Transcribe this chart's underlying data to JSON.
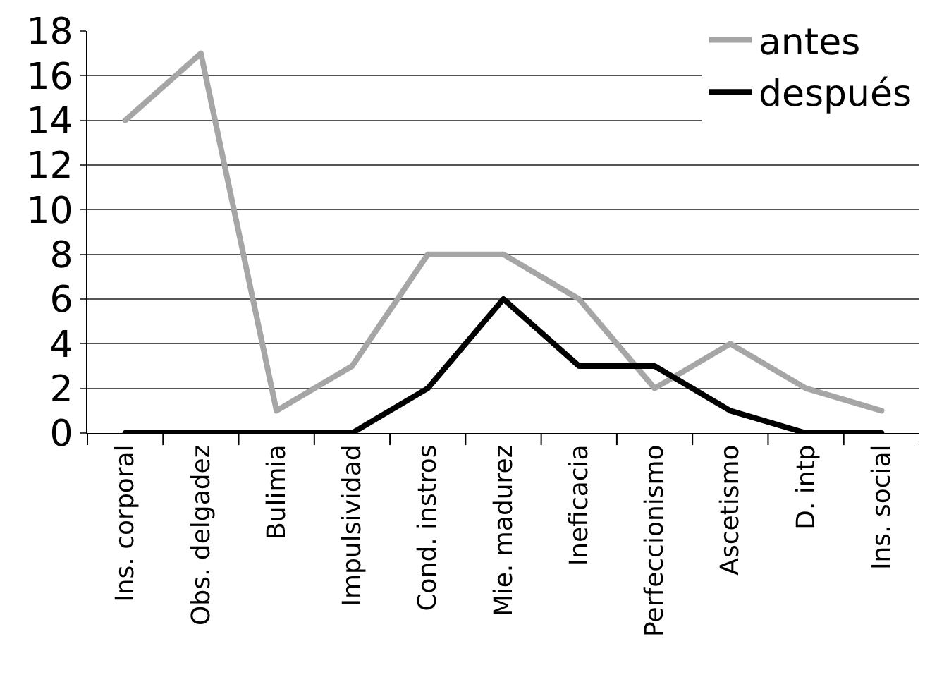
{
  "chart_data": {
    "type": "line",
    "categories": [
      "Ins. corporal",
      "Obs. delgadez",
      "Bulimia",
      "Impulsividad",
      "Cond. instros",
      "Mie. madurez",
      "Ineficacia",
      "Perfeccionismo",
      "Ascetismo",
      "D. intp",
      "Ins. social"
    ],
    "series": [
      {
        "name": "antes",
        "color": "#a6a6a6",
        "values": [
          14,
          17,
          1,
          3,
          8,
          8,
          6,
          2,
          4,
          2,
          1
        ]
      },
      {
        "name": "después",
        "color": "#000000",
        "values": [
          0,
          0,
          0,
          0,
          2,
          6,
          3,
          3,
          1,
          0,
          0
        ]
      }
    ],
    "ylim": [
      0,
      18
    ],
    "yticks": [
      0,
      2,
      4,
      6,
      8,
      10,
      12,
      14,
      16,
      18
    ],
    "grid": "y",
    "legend": "top right",
    "marker": "none",
    "line_style": "solid"
  }
}
